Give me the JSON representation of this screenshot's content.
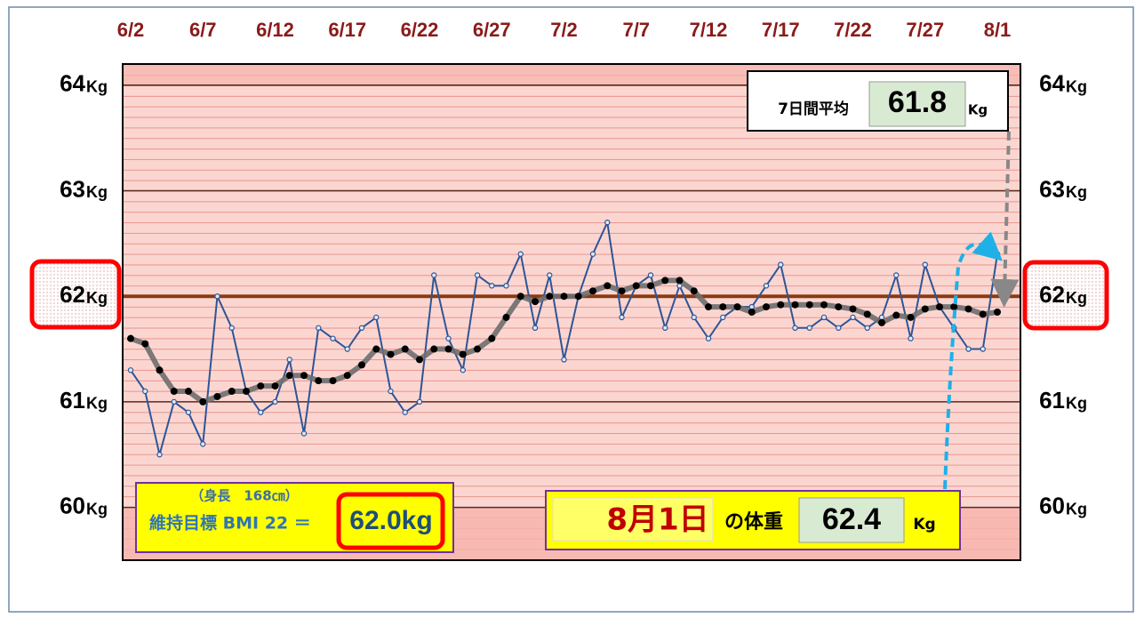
{
  "chart_data": {
    "type": "line",
    "categories": [
      "6/2",
      null,
      null,
      null,
      null,
      "6/7",
      null,
      null,
      null,
      null,
      "6/12",
      null,
      null,
      null,
      null,
      "6/17",
      null,
      null,
      null,
      null,
      "6/22",
      null,
      null,
      null,
      null,
      "6/27",
      null,
      null,
      null,
      null,
      "7/2",
      null,
      null,
      null,
      null,
      "7/7",
      null,
      null,
      null,
      null,
      "7/12",
      null,
      null,
      null,
      null,
      "7/17",
      null,
      null,
      null,
      null,
      "7/22",
      null,
      null,
      null,
      null,
      "7/27",
      null,
      null,
      null,
      null,
      "8/1"
    ],
    "series": [
      {
        "color": "#2e5597",
        "values": [
          61.3,
          61.1,
          60.5,
          61.0,
          60.9,
          60.6,
          62.0,
          61.7,
          61.1,
          60.9,
          61.0,
          61.4,
          60.7,
          61.7,
          61.6,
          61.5,
          61.7,
          61.8,
          61.1,
          60.9,
          61.0,
          62.2,
          61.6,
          61.3,
          62.2,
          62.1,
          62.1,
          62.4,
          61.7,
          62.2,
          61.4,
          62.0,
          62.4,
          62.7,
          61.8,
          62.1,
          62.2,
          61.7,
          62.1,
          61.8,
          61.6,
          61.8,
          61.9,
          61.9,
          62.1,
          62.3,
          61.7,
          61.7,
          61.8,
          61.7,
          61.8,
          61.7,
          61.8,
          62.2,
          61.6,
          62.3,
          61.9,
          61.7,
          61.5,
          61.5,
          62.4
        ]
      },
      {
        "color": "#000000",
        "values": [
          61.6,
          61.55,
          61.3,
          61.1,
          61.1,
          61.0,
          61.05,
          61.1,
          61.1,
          61.15,
          61.15,
          61.25,
          61.25,
          61.2,
          61.2,
          61.25,
          61.35,
          61.5,
          61.45,
          61.5,
          61.4,
          61.5,
          61.5,
          61.45,
          61.5,
          61.6,
          61.8,
          62.0,
          61.95,
          62.0,
          62.0,
          62.0,
          62.05,
          62.1,
          62.05,
          62.1,
          62.1,
          62.15,
          62.15,
          62.05,
          61.9,
          61.9,
          61.9,
          61.85,
          61.9,
          61.92,
          61.92,
          61.92,
          61.92,
          61.9,
          61.88,
          61.83,
          61.75,
          61.82,
          61.8,
          61.88,
          61.9,
          61.9,
          61.88,
          61.83,
          61.85
        ]
      }
    ],
    "ylim": [
      59.5,
      64.2
    ],
    "yticks": [
      60,
      61,
      62,
      63,
      64
    ],
    "y_unit": "Kg",
    "grid": true,
    "target": {
      "value": 62,
      "label": "62.0kg"
    },
    "target_note": "（身長　168㎝）",
    "target_caption": "維持目標 BMI 22 ＝",
    "avg_caption": "7日間平均",
    "avg_value": 61.8,
    "avg_unit": "Kg",
    "latest_date": "8月1日",
    "latest_caption": "の体重",
    "latest_value": 62.4,
    "latest_unit": "Kg"
  }
}
